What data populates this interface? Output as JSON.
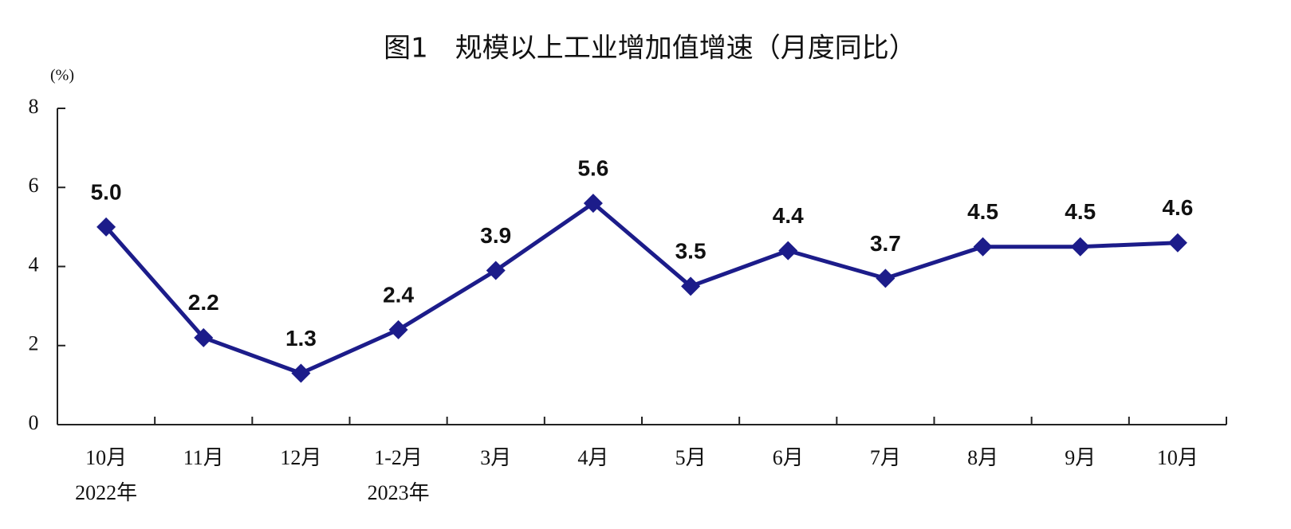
{
  "chart_data": {
    "type": "line",
    "title": "图1　规模以上工业增加值增速（月度同比）",
    "y_label": "(%)",
    "categories": [
      "10月",
      "11月",
      "12月",
      "1-2月",
      "3月",
      "4月",
      "5月",
      "6月",
      "7月",
      "8月",
      "9月",
      "10月"
    ],
    "x_sublabels": [
      "2022年",
      null,
      null,
      "2023年",
      null,
      null,
      null,
      null,
      null,
      null,
      null,
      null
    ],
    "series": [
      {
        "name": "规模以上工业增加值增速",
        "color": "#1c1c8a",
        "values": [
          5.0,
          2.2,
          1.3,
          2.4,
          3.9,
          5.6,
          3.5,
          4.4,
          3.7,
          4.5,
          4.5,
          4.6
        ],
        "value_labels": [
          "5.0",
          "2.2",
          "1.3",
          "2.4",
          "3.9",
          "5.6",
          "3.5",
          "4.4",
          "3.7",
          "4.5",
          "4.5",
          "4.6"
        ]
      }
    ],
    "ylim": [
      0,
      8
    ],
    "yticks": [
      0,
      2,
      4,
      6,
      8
    ],
    "grid": false
  }
}
